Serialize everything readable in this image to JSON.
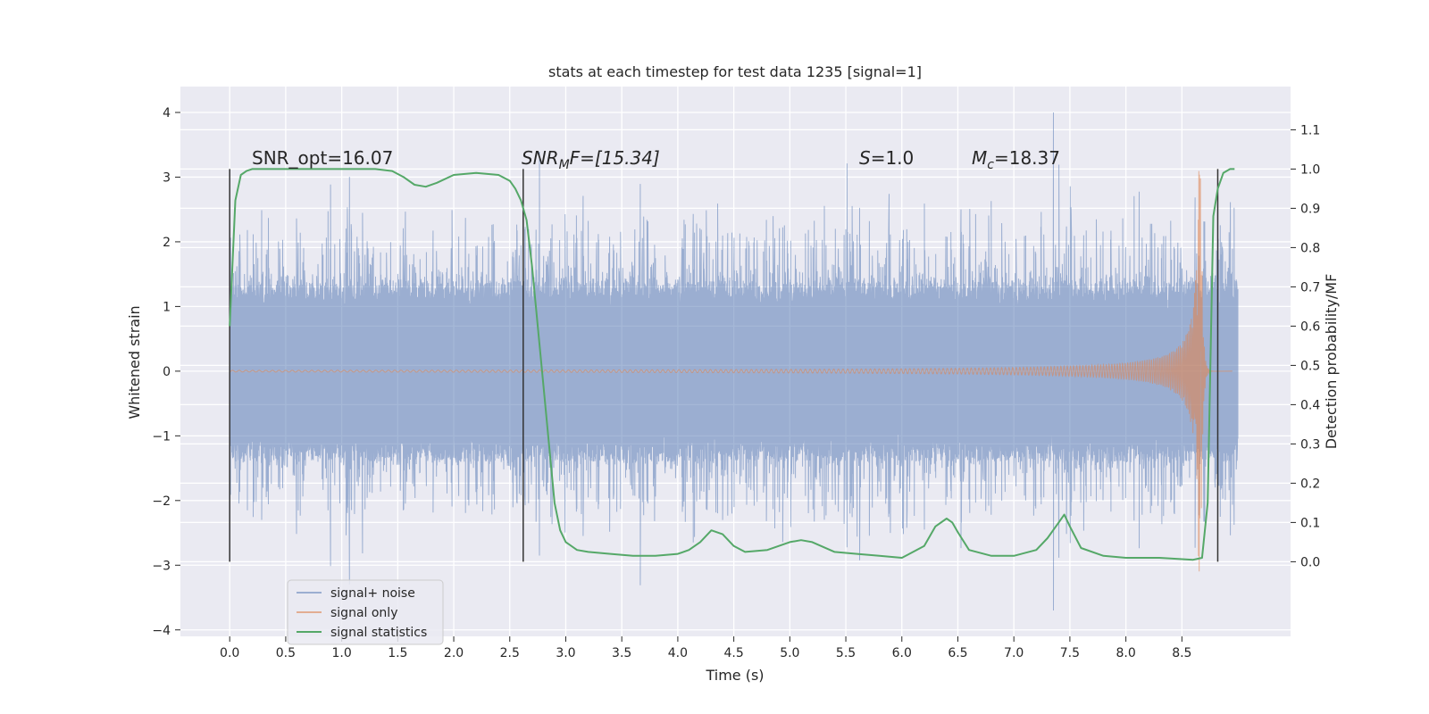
{
  "chart_data": {
    "type": "line",
    "title": "stats at each timestep for test data 1235 [signal=1]",
    "xlabel": "Time (s)",
    "ylabel": "Whitened strain",
    "y2label": "Detection probability/MF",
    "xlim": [
      -0.44,
      9.47
    ],
    "ylim": [
      -4.1,
      4.4
    ],
    "y2lim": [
      -0.19,
      1.21
    ],
    "xticks": [
      0.0,
      0.5,
      1.0,
      1.5,
      2.0,
      2.5,
      3.0,
      3.5,
      4.0,
      4.5,
      5.0,
      5.5,
      6.0,
      6.5,
      7.0,
      7.5,
      8.0,
      8.5
    ],
    "xtick_labels": [
      "0.0",
      "0.5",
      "1.0",
      "1.5",
      "2.0",
      "2.5",
      "3.0",
      "3.5",
      "4.0",
      "4.5",
      "5.0",
      "5.5",
      "6.0",
      "6.5",
      "7.0",
      "7.5",
      "8.0",
      "8.5"
    ],
    "yticks": [
      4,
      3,
      2,
      1,
      0,
      -1,
      -2,
      -3,
      -4
    ],
    "ytick_labels": [
      "4",
      "3",
      "2",
      "1",
      "0",
      "−1",
      "−2",
      "−3",
      "−4"
    ],
    "y2ticks": [
      1.1,
      1.0,
      0.9,
      0.8,
      0.7,
      0.6,
      0.5,
      0.4,
      0.3,
      0.2,
      0.1,
      0.0
    ],
    "y2tick_labels": [
      "1.1",
      "1.0",
      "0.9",
      "0.8",
      "0.7",
      "0.6",
      "0.5",
      "0.4",
      "0.3",
      "0.2",
      "0.1",
      "0.0"
    ],
    "legend_position": "lower-left",
    "series": [
      {
        "name": "signal+ noise",
        "color": "#4c72b0",
        "axis": "left",
        "description_envelope": {
          "x": [
            0.0,
            9.0
          ],
          "core_amplitude": 1.35,
          "peak_range": [
            -3.7,
            4.0
          ]
        }
      },
      {
        "name": "signal only",
        "color": "#dd8452",
        "axis": "left",
        "chirp": {
          "x_start": 0.0,
          "x_merger": 8.67,
          "x_end": 8.78,
          "peak_amplitude": 3.1
        }
      },
      {
        "name": "signal statistics",
        "color": "#55a868",
        "axis": "right",
        "x": [
          0.0,
          0.05,
          0.1,
          0.15,
          0.2,
          0.3,
          0.5,
          1.0,
          1.3,
          1.45,
          1.55,
          1.65,
          1.75,
          1.85,
          2.0,
          2.2,
          2.4,
          2.5,
          2.55,
          2.6,
          2.65,
          2.7,
          2.8,
          2.9,
          2.95,
          3.0,
          3.1,
          3.2,
          3.4,
          3.6,
          3.8,
          4.0,
          4.1,
          4.2,
          4.3,
          4.4,
          4.5,
          4.6,
          4.8,
          5.0,
          5.1,
          5.2,
          5.4,
          5.6,
          5.8,
          6.0,
          6.2,
          6.3,
          6.4,
          6.45,
          6.5,
          6.6,
          6.8,
          7.0,
          7.2,
          7.3,
          7.4,
          7.45,
          7.5,
          7.6,
          7.8,
          8.0,
          8.3,
          8.6,
          8.68,
          8.73,
          8.78,
          8.82,
          8.87,
          8.93,
          8.97
        ],
        "values": [
          0.6,
          0.92,
          0.985,
          0.995,
          1.0,
          1.0,
          1.0,
          1.0,
          1.0,
          0.995,
          0.98,
          0.96,
          0.955,
          0.965,
          0.985,
          0.99,
          0.985,
          0.97,
          0.95,
          0.92,
          0.87,
          0.75,
          0.45,
          0.15,
          0.08,
          0.05,
          0.03,
          0.025,
          0.02,
          0.015,
          0.015,
          0.02,
          0.03,
          0.05,
          0.08,
          0.07,
          0.04,
          0.025,
          0.03,
          0.05,
          0.055,
          0.05,
          0.025,
          0.02,
          0.015,
          0.01,
          0.04,
          0.09,
          0.11,
          0.1,
          0.075,
          0.03,
          0.015,
          0.015,
          0.03,
          0.06,
          0.1,
          0.12,
          0.09,
          0.035,
          0.015,
          0.01,
          0.01,
          0.005,
          0.01,
          0.15,
          0.88,
          0.95,
          0.99,
          1.0,
          1.0
        ]
      }
    ],
    "vertical_lines": [
      0.0,
      2.62,
      8.82
    ],
    "annotations": {
      "snr_opt": "SNR_opt=16.07",
      "snr_mf_prefix": "SNR",
      "snr_mf_sub": "M",
      "snr_mf_suffix": "F=[15.34]",
      "s_symbol": "S",
      "s_value": "=1.0",
      "mc_symbol": "M",
      "mc_sub": "c",
      "mc_value": "=18.37"
    },
    "colors": {
      "plot_background": "#eaeaf2",
      "grid": "#ffffff",
      "vline": "#333333"
    }
  }
}
